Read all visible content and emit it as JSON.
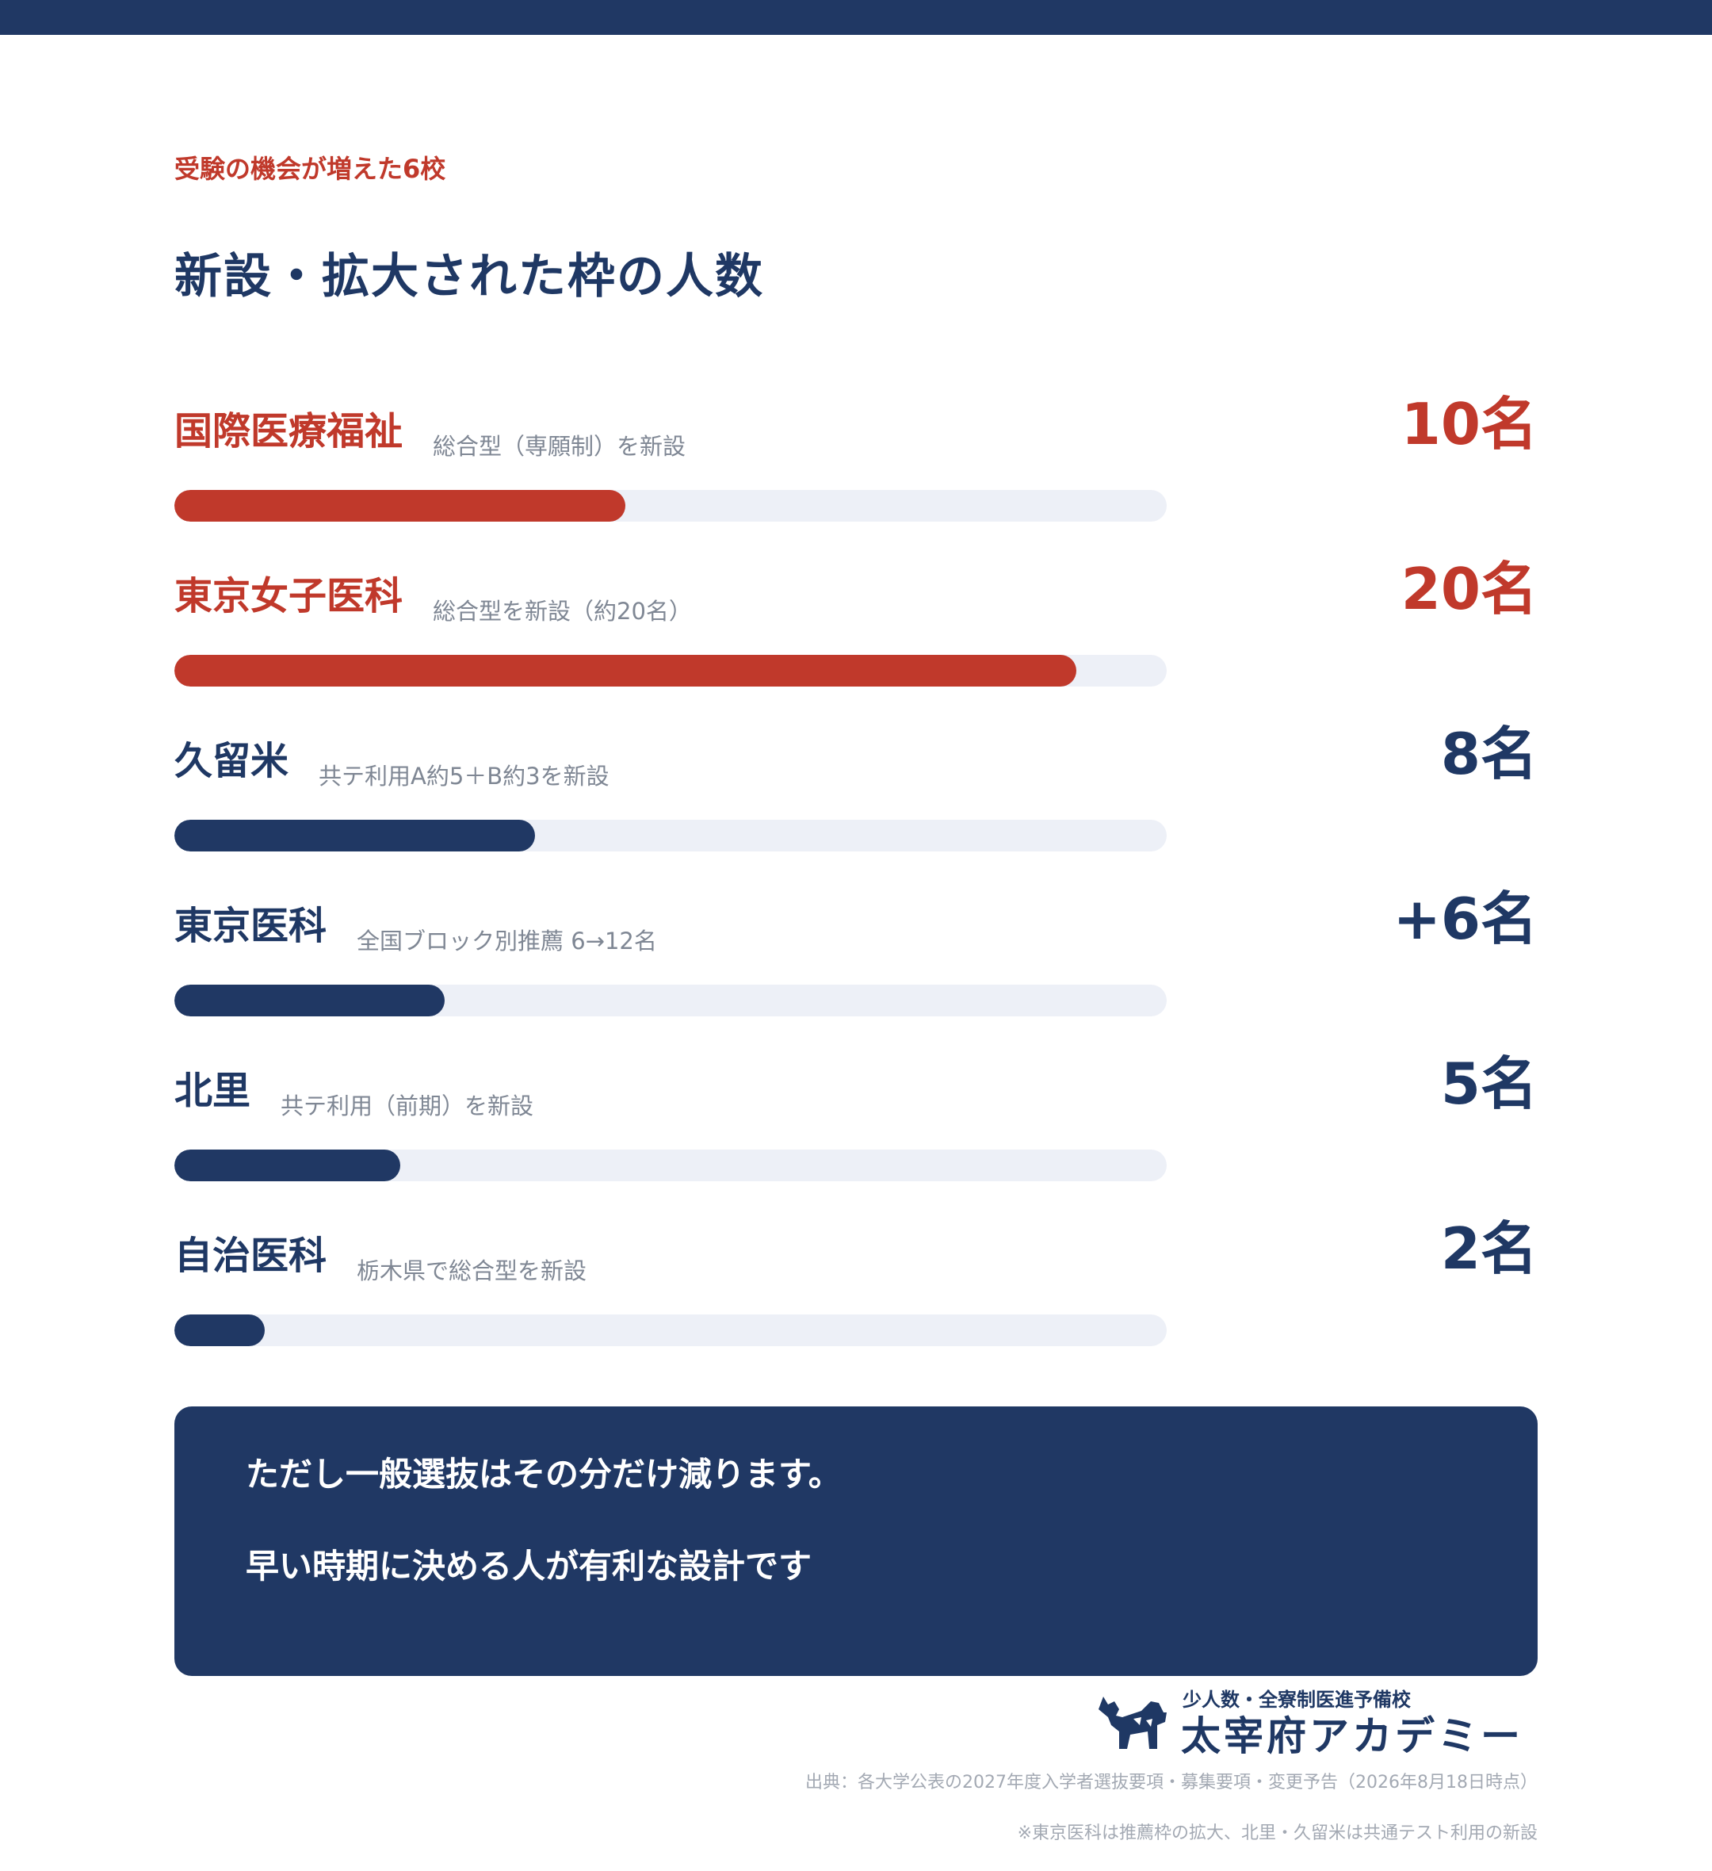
{
  "eyebrow": "受験の機会が増えた6校",
  "title": "新設・拡大された枠の人数",
  "colors": {
    "accent_red": "#c0392b",
    "navy": "#203864",
    "track": "#edf0f7",
    "muted_text": "#7f8794"
  },
  "chart_data": {
    "type": "bar",
    "orientation": "horizontal",
    "xlim": [
      0,
      22
    ],
    "categories": [
      "国際医療福祉",
      "東京女子医科",
      "久留米",
      "東京医科",
      "北里",
      "自治医科"
    ],
    "values": [
      10,
      20,
      8,
      6,
      5,
      2
    ],
    "rows": [
      {
        "name": "国際医療福祉",
        "note": "総合型（専願制）を新設",
        "value": 10,
        "value_label": "10名",
        "highlight": true
      },
      {
        "name": "東京女子医科",
        "note": "総合型を新設（約20名）",
        "value": 20,
        "value_label": "20名",
        "highlight": true
      },
      {
        "name": "久留米",
        "note": "共テ利用A約5＋B約3を新設",
        "value": 8,
        "value_label": "8名",
        "highlight": false
      },
      {
        "name": "東京医科",
        "note": "全国ブロック別推薦 6→12名",
        "value": 6,
        "value_label": "+6名",
        "highlight": false
      },
      {
        "name": "北里",
        "note": "共テ利用（前期）を新設",
        "value": 5,
        "value_label": "5名",
        "highlight": false
      },
      {
        "name": "自治医科",
        "note": "栃木県で総合型を新設",
        "value": 2,
        "value_label": "2名",
        "highlight": false
      }
    ]
  },
  "callout": {
    "line1": "ただし一般選抜はその分だけ減ります。",
    "line2": "早い時期に決める人が有利な設計です"
  },
  "logo": {
    "tagline": "少人数・全寮制医進予備校",
    "brand": "太宰府アカデミー",
    "icon": "dog-silhouette-icon"
  },
  "source": "出典：各大学公表の2027年度入学者選抜要項・募集要項・変更予告（2026年8月18日時点）",
  "footnote": "※東京医科は推薦枠の拡大、北里・久留米は共通テスト利用の新設"
}
